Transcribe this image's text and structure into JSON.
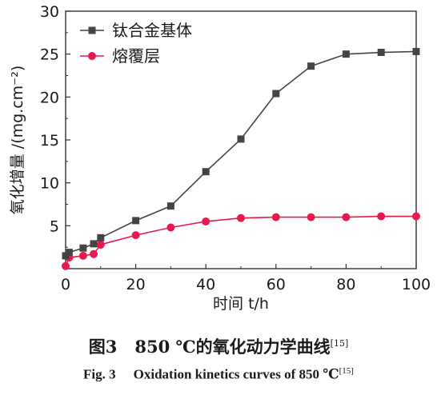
{
  "chart_data": {
    "type": "line",
    "title": "",
    "xlabel": "时间 t/h",
    "ylabel": "氧化增量 /(mg.cm⁻²)",
    "xlim": [
      0,
      100
    ],
    "ylim": [
      0,
      30
    ],
    "x_ticks": [
      "0",
      "20",
      "40",
      "60",
      "80",
      "100"
    ],
    "y_ticks": [
      "5",
      "10",
      "15",
      "20",
      "25",
      "30"
    ],
    "grid": false,
    "legend_position": "top-left",
    "series": [
      {
        "name": "钛合金基体",
        "color": "#444444",
        "marker": "square",
        "x": [
          0,
          1,
          5,
          8,
          10,
          20,
          30,
          40,
          50,
          60,
          70,
          80,
          90,
          100
        ],
        "y": [
          1.5,
          1.9,
          2.4,
          2.9,
          3.6,
          5.6,
          7.3,
          11.3,
          15.1,
          20.4,
          23.6,
          25.0,
          25.2,
          25.3
        ]
      },
      {
        "name": "熔覆层",
        "color": "#e8194b",
        "marker": "circle",
        "x": [
          0,
          1,
          5,
          8,
          10,
          20,
          30,
          40,
          50,
          60,
          70,
          80,
          90,
          100
        ],
        "y": [
          0.3,
          1.3,
          1.5,
          1.7,
          2.8,
          3.9,
          4.8,
          5.5,
          5.9,
          6.0,
          6.0,
          6.0,
          6.1,
          6.1
        ]
      }
    ]
  },
  "caption": {
    "cn_label": "图3",
    "cn_text": "850 ℃的氧化动力学曲线",
    "cn_ref": "[15]",
    "en_label": "Fig. 3",
    "en_text": "Oxidation kinetics curves of 850 ℃",
    "en_ref": "[15]"
  }
}
